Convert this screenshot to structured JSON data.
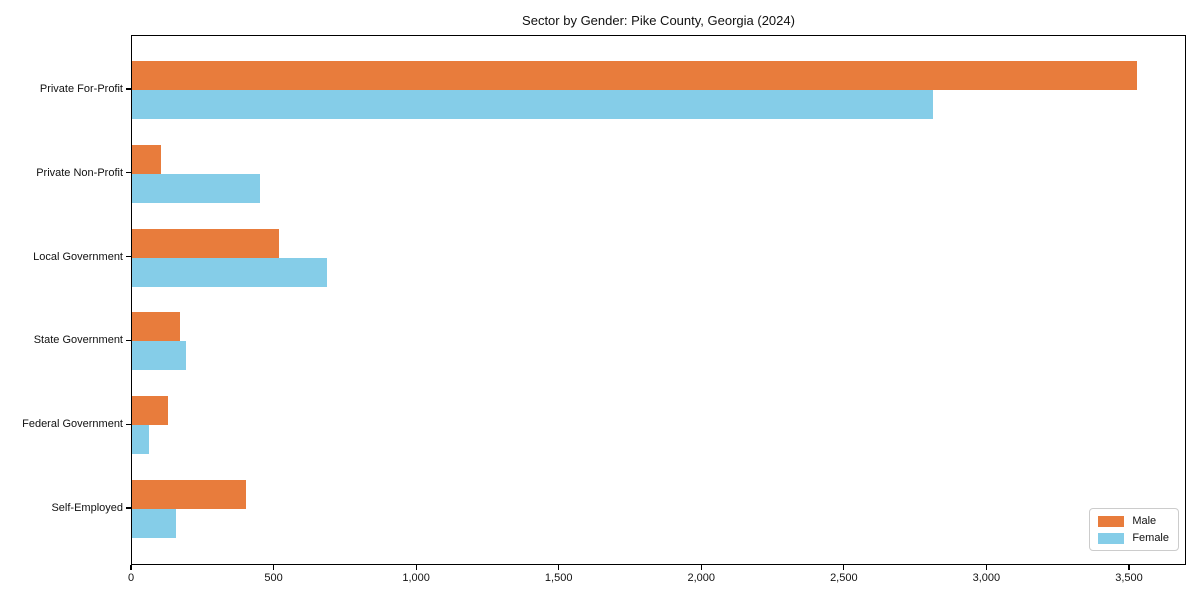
{
  "title": "Sector by Gender: Pike County, Georgia (2024)",
  "chart_data": {
    "type": "bar",
    "orientation": "horizontal",
    "title": "Sector by Gender: Pike County, Georgia (2024)",
    "categories": [
      "Private For-Profit",
      "Private Non-Profit",
      "Local Government",
      "State Government",
      "Federal Government",
      "Self-Employed"
    ],
    "series": [
      {
        "name": "Male",
        "color": "#E87C3C",
        "values": [
          3525,
          100,
          515,
          170,
          125,
          400
        ]
      },
      {
        "name": "Female",
        "color": "#85CDE8",
        "values": [
          2810,
          450,
          685,
          190,
          60,
          155
        ]
      }
    ],
    "xlabel": "",
    "ylabel": "",
    "xlim": [
      0,
      3700
    ],
    "x_ticks": [
      0,
      500,
      1000,
      1500,
      2000,
      2500,
      3000,
      3500
    ],
    "x_tick_labels": [
      "0",
      "500",
      "1,000",
      "1,500",
      "2,000",
      "2,500",
      "3,000",
      "3,500"
    ],
    "grid": false,
    "legend_position": "lower right"
  },
  "legend": {
    "items": [
      {
        "label": "Male",
        "color": "#E87C3C"
      },
      {
        "label": "Female",
        "color": "#85CDE8"
      }
    ]
  }
}
